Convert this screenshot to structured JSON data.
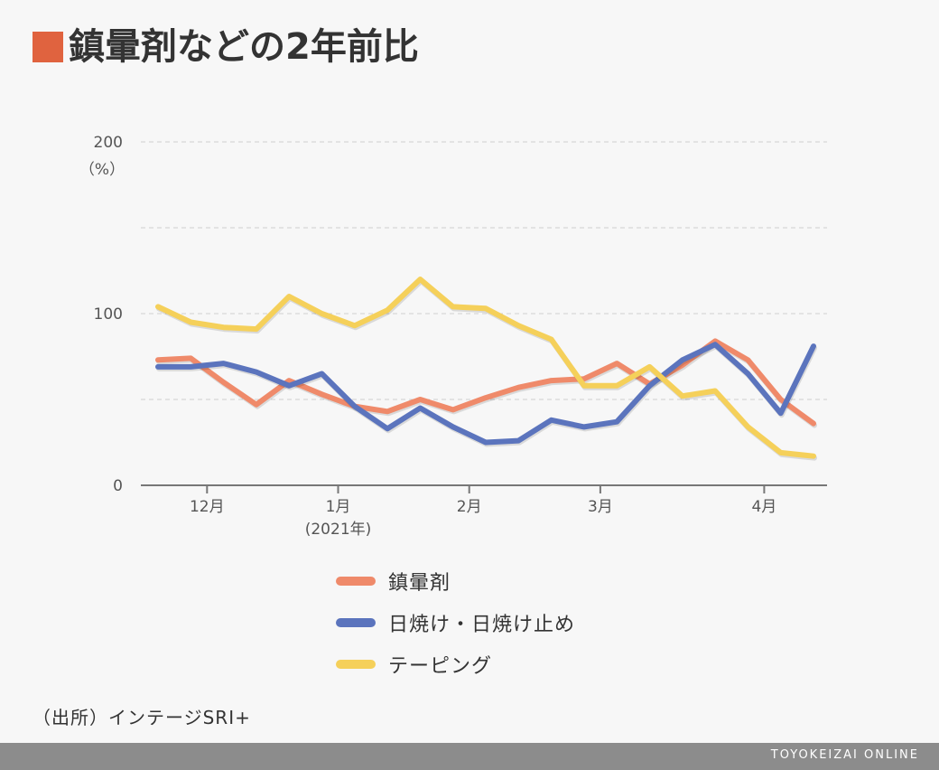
{
  "title": "鎮暈剤などの2年前比",
  "title_color": "#e0633f",
  "source": "（出所）インテージSRI+",
  "footer": {
    "brand": "TOYOKEIZAI ONLINE",
    "background": "#8c8c8c"
  },
  "chart_data": {
    "type": "line",
    "title": "鎮暈剤などの2年前比",
    "ylabel": "（%）",
    "ylim": [
      0,
      200
    ],
    "yticks": [
      "0",
      "100",
      "200"
    ],
    "grid": true,
    "x_month_labels": [
      {
        "label": "12月",
        "index": 1
      },
      {
        "label": "1月",
        "sub": "(2021年)",
        "index": 5
      },
      {
        "label": "2月",
        "index": 9
      },
      {
        "label": "3月",
        "index": 13
      },
      {
        "label": "4月",
        "index": 18
      }
    ],
    "points": 21,
    "legend_position": "bottom",
    "series": [
      {
        "name": "鎮暈剤",
        "color": "#ef8a6a",
        "values": [
          73,
          74,
          60,
          47,
          61,
          53,
          46,
          43,
          50,
          44,
          51,
          57,
          61,
          62,
          71,
          59,
          70,
          84,
          73,
          50,
          36
        ]
      },
      {
        "name": "日焼け・日焼け止め",
        "color": "#5b74bd",
        "values": [
          69,
          69,
          71,
          66,
          58,
          65,
          46,
          33,
          45,
          34,
          25,
          26,
          38,
          34,
          37,
          58,
          73,
          82,
          65,
          42,
          81
        ]
      },
      {
        "name": "テーピング",
        "color": "#f5d05a",
        "values": [
          104,
          95,
          92,
          91,
          110,
          100,
          93,
          102,
          120,
          104,
          103,
          93,
          85,
          58,
          58,
          69,
          52,
          55,
          34,
          19,
          17
        ]
      }
    ]
  }
}
